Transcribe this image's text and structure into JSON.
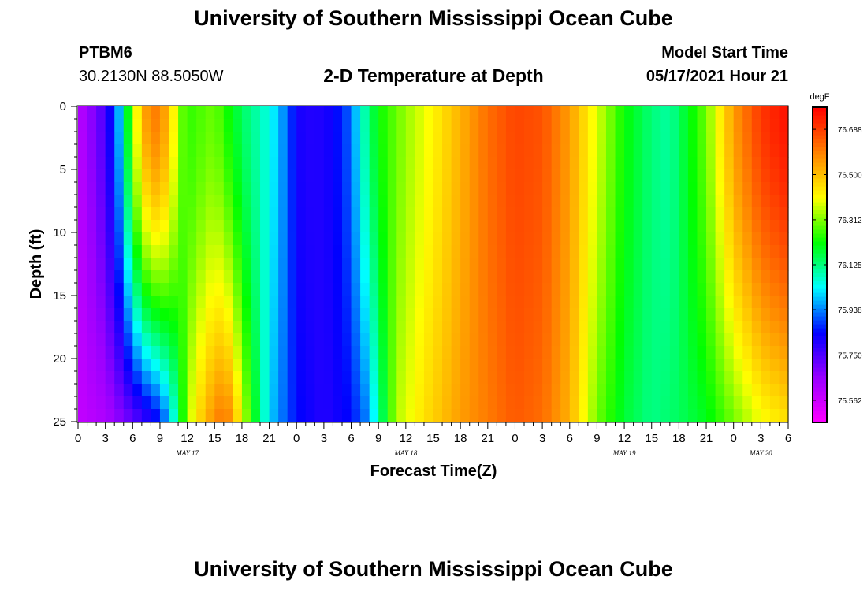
{
  "page": {
    "title_top": "University of Southern Mississippi Ocean Cube",
    "title_bottom": "University of Southern Mississippi Ocean Cube",
    "station_id": "PTBM6",
    "station_coords": "30.2130N  88.5050W",
    "plot_title": "2-D Temperature at Depth",
    "model_label": "Model Start Time",
    "model_time": "05/17/2021 Hour 21"
  },
  "chart_data": {
    "type": "heatmap",
    "title": "2-D Temperature at Depth",
    "xlabel": "Forecast Time(Z)",
    "ylabel": "Depth (ft)",
    "x_range_hours": [
      0,
      78
    ],
    "y_range_ft": [
      0,
      25
    ],
    "y_inverted": true,
    "x_tick_labels": [
      "0",
      "3",
      "6",
      "9",
      "12",
      "15",
      "18",
      "21",
      "0",
      "3",
      "6",
      "9",
      "12",
      "15",
      "18",
      "21",
      "0",
      "3",
      "6",
      "9",
      "12",
      "15",
      "18",
      "21",
      "0",
      "3",
      "6"
    ],
    "x_tick_hours": [
      0,
      3,
      6,
      9,
      12,
      15,
      18,
      21,
      24,
      27,
      30,
      33,
      36,
      39,
      42,
      45,
      48,
      51,
      54,
      57,
      60,
      63,
      66,
      69,
      72,
      75,
      78
    ],
    "y_tick_labels": [
      "0",
      "5",
      "10",
      "15",
      "20",
      "25"
    ],
    "y_tick_values": [
      0,
      5,
      10,
      15,
      20,
      25
    ],
    "date_labels": [
      {
        "text": "MAY 17",
        "hour": 12
      },
      {
        "text": "MAY 18",
        "hour": 36
      },
      {
        "text": "MAY 19",
        "hour": 60
      },
      {
        "text": "MAY 20",
        "hour": 75
      }
    ],
    "colorbar": {
      "unit": "degF",
      "min": 75.47,
      "max": 76.78,
      "tick_values": [
        75.562,
        75.75,
        75.938,
        76.125,
        76.312,
        76.5,
        76.688
      ],
      "tick_labels": [
        "75.562",
        "75.750",
        "75.938",
        "76.125",
        "76.312",
        "76.500",
        "76.688"
      ],
      "colors": [
        "#ff00ff",
        "#9900ff",
        "#0000ff",
        "#00ffff",
        "#00ff00",
        "#ffff00",
        "#ff8000",
        "#ff0000"
      ]
    },
    "surface_temperature_degF": {
      "hours": [
        0,
        3,
        4,
        5,
        6,
        8,
        10,
        11,
        12,
        15,
        18,
        21,
        23,
        24,
        26,
        28,
        30,
        31,
        33,
        36,
        39,
        42,
        45,
        48,
        51,
        54,
        57,
        60,
        63,
        65,
        69,
        72,
        75,
        78
      ],
      "values": [
        75.59,
        75.76,
        75.9,
        76.05,
        76.35,
        76.62,
        76.52,
        76.32,
        76.25,
        76.3,
        76.15,
        76.05,
        75.92,
        75.82,
        75.8,
        75.83,
        75.92,
        76.05,
        76.22,
        76.33,
        76.42,
        76.52,
        76.62,
        76.68,
        76.66,
        76.55,
        76.38,
        76.22,
        76.13,
        76.1,
        76.3,
        76.55,
        76.7,
        76.76
      ]
    },
    "bottom_temperature_degF": {
      "hours": [
        0,
        3,
        6,
        9,
        10,
        11,
        12,
        14,
        16,
        17,
        18,
        21,
        24,
        27,
        30,
        32,
        33,
        35,
        38,
        40,
        42,
        45,
        48,
        51,
        54,
        57,
        60,
        63,
        66,
        69,
        72,
        75,
        78
      ],
      "values": [
        75.58,
        75.62,
        75.72,
        75.85,
        75.98,
        76.12,
        76.35,
        76.52,
        76.62,
        76.55,
        76.38,
        76.0,
        75.85,
        75.8,
        75.85,
        75.95,
        76.1,
        76.35,
        76.45,
        76.5,
        76.55,
        76.6,
        76.65,
        76.62,
        76.52,
        76.3,
        76.18,
        76.12,
        76.15,
        76.2,
        76.3,
        76.4,
        76.45
      ]
    }
  }
}
